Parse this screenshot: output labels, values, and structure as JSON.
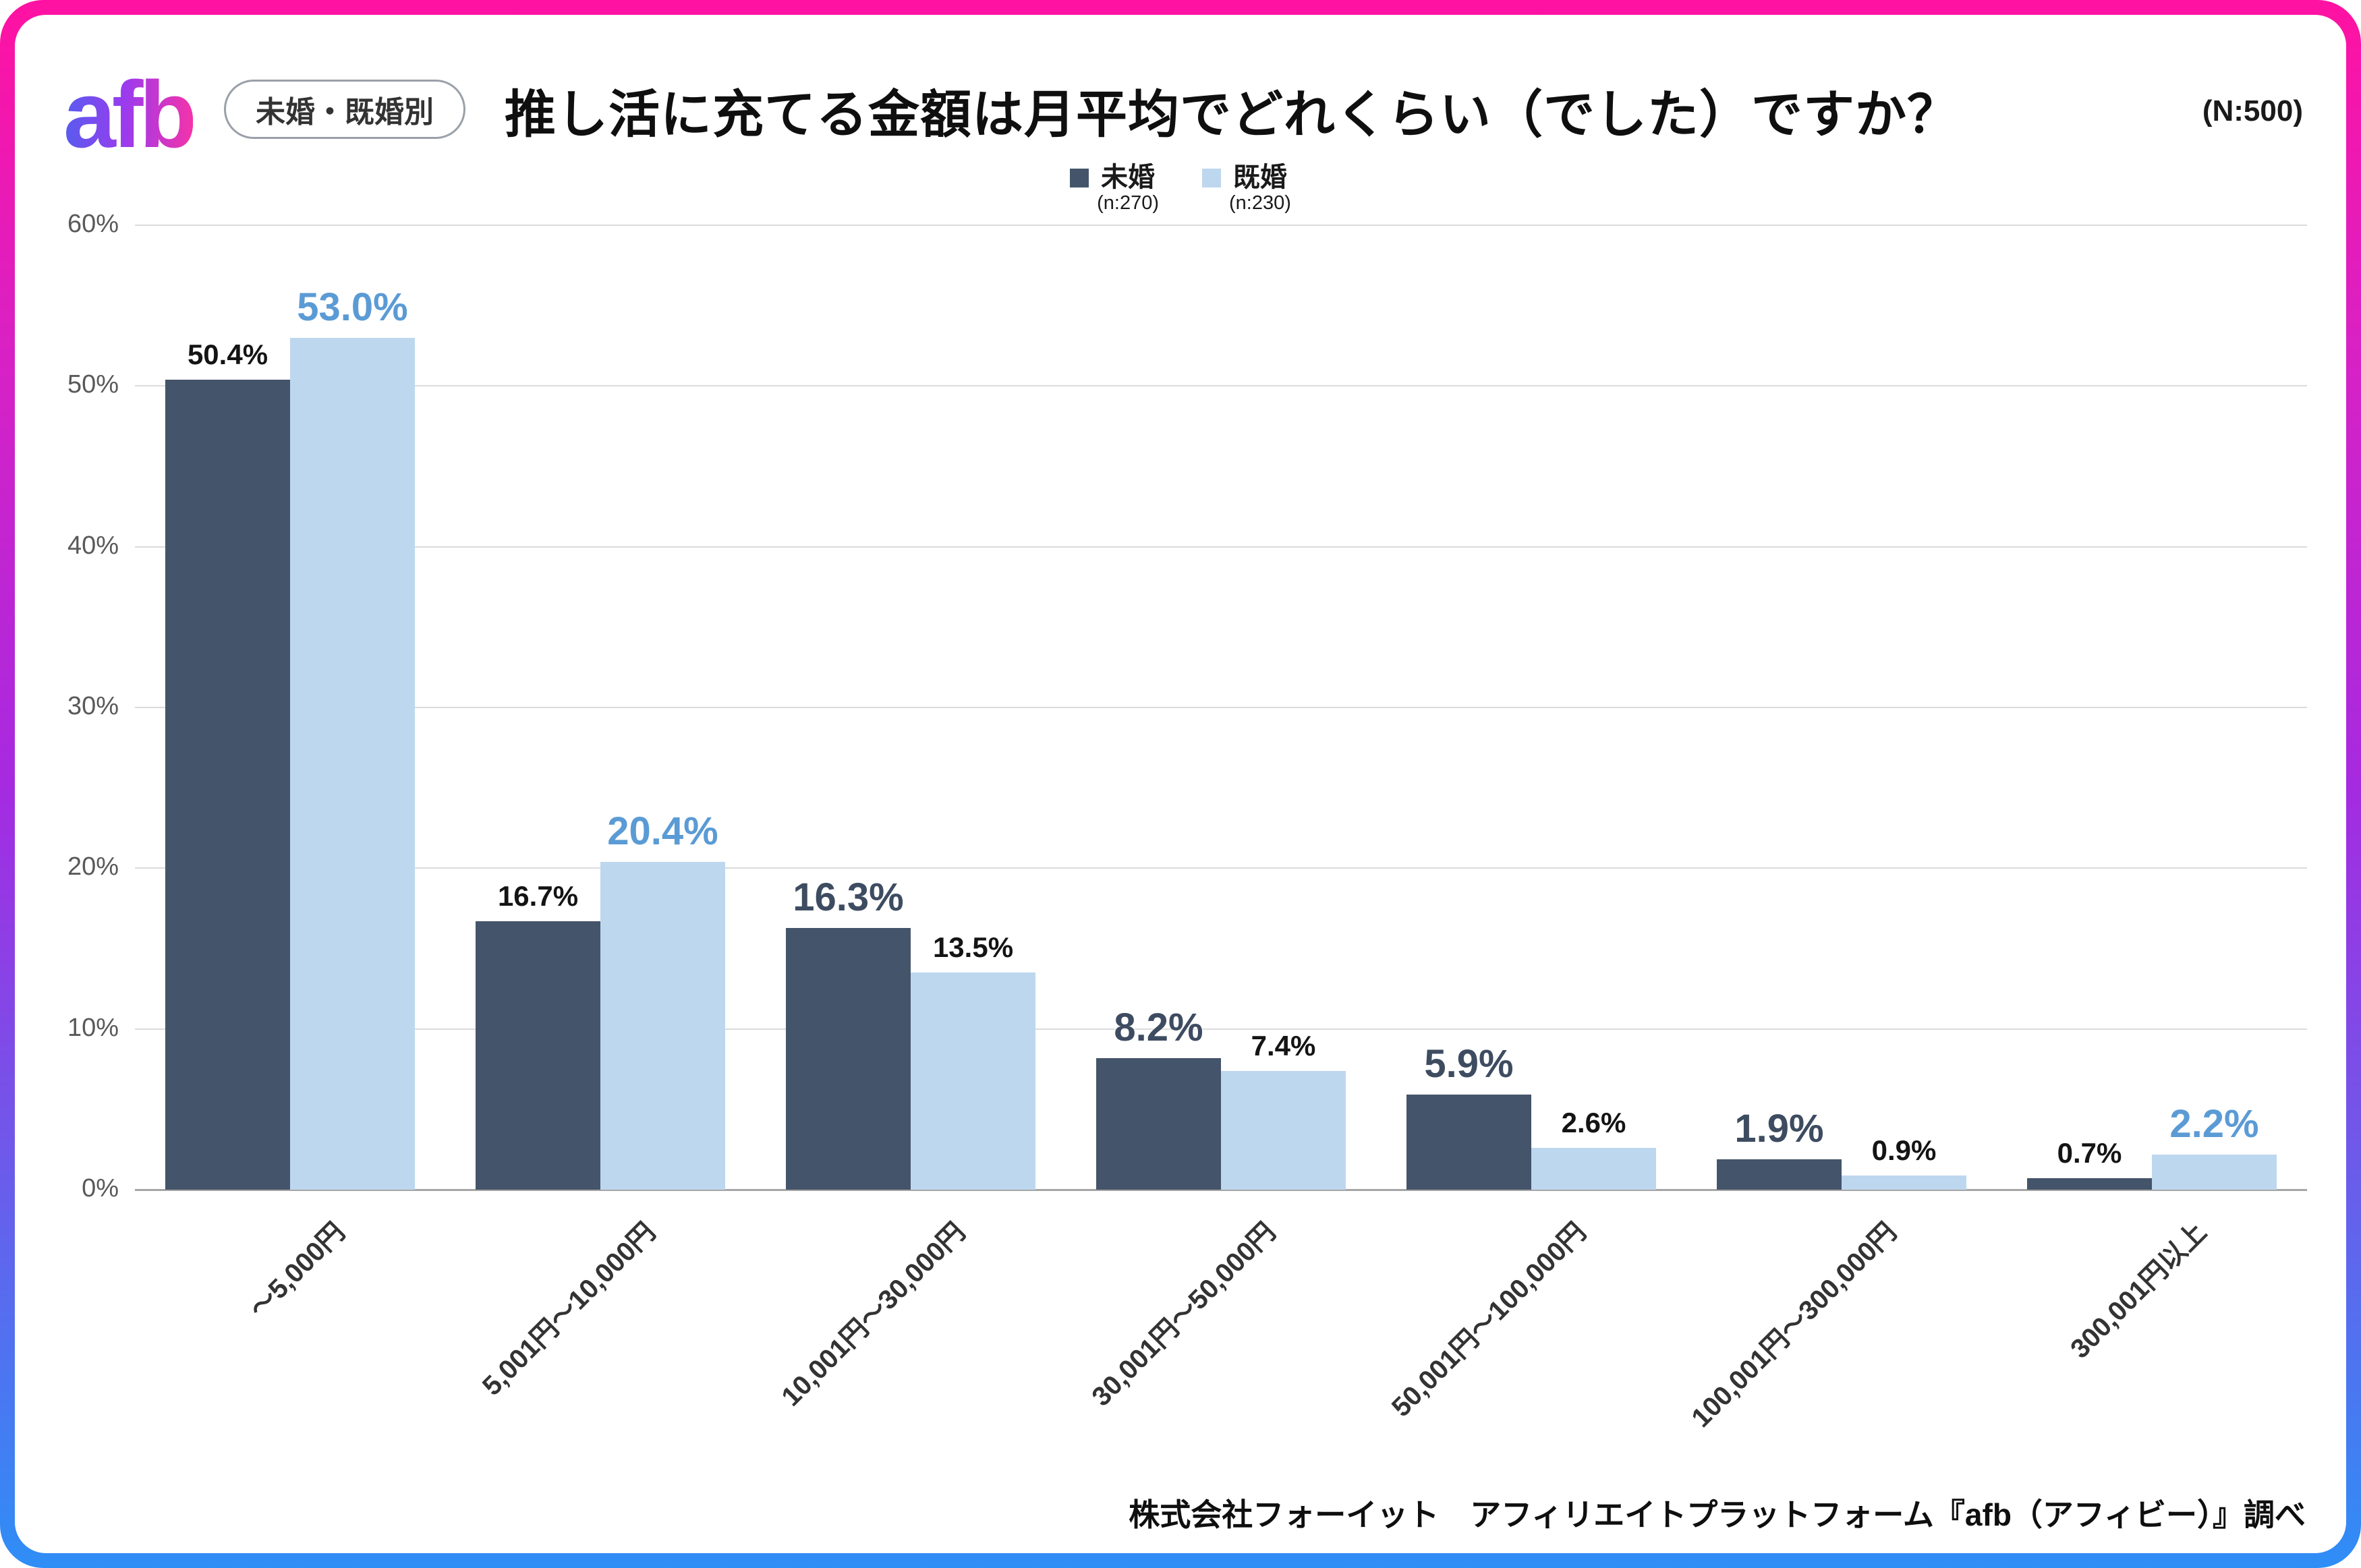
{
  "frame": {
    "border_gradient": [
      "#FF12A2",
      "#A62AE0",
      "#2F8EF6"
    ]
  },
  "header": {
    "logo": "afb",
    "badge": "未婚・既婚別",
    "title": "推し活に充てる金額は月平均でどれくらい（でした）ですか？",
    "sample_size": "(N:500)"
  },
  "chart_data": {
    "type": "bar",
    "title": "推し活に充てる金額は月平均でどれくらい（でした）ですか？",
    "categories": [
      "～5,000円",
      "5,001円～10,000円",
      "10,001円～30,000円",
      "30,001円～50,000円",
      "50,001円～100,000円",
      "100,001円～300,000円",
      "300,001円以上"
    ],
    "series": [
      {
        "name": "未婚",
        "n_label": "(n:270)",
        "color": "#44546A",
        "emphasis_color": "#3E4C61",
        "values": [
          50.4,
          16.7,
          16.3,
          8.2,
          5.9,
          1.9,
          0.7
        ],
        "labels": [
          "50.4%",
          "16.7%",
          "16.3%",
          "8.2%",
          "5.9%",
          "1.9%",
          "0.7%"
        ],
        "emphasized": [
          false,
          false,
          true,
          true,
          true,
          true,
          false
        ]
      },
      {
        "name": "既婚",
        "n_label": "(n:230)",
        "color": "#BDD7EE",
        "emphasis_color": "#5B9BD5",
        "values": [
          53.0,
          20.4,
          13.5,
          7.4,
          2.6,
          0.9,
          2.2
        ],
        "labels": [
          "53.0%",
          "20.4%",
          "13.5%",
          "7.4%",
          "2.6%",
          "0.9%",
          "2.2%"
        ],
        "emphasized": [
          true,
          true,
          false,
          false,
          false,
          false,
          true
        ]
      }
    ],
    "ylim": [
      0,
      60
    ],
    "ytick_step": 10,
    "ytick_labels": [
      "0%",
      "10%",
      "20%",
      "30%",
      "40%",
      "50%",
      "60%"
    ],
    "grid": true,
    "legend_position": "top-center",
    "xlabel": "",
    "ylabel": ""
  },
  "footer": {
    "credit": "株式会社フォーイット　アフィリエイトプラットフォーム『afb（アフィビー）』調べ"
  }
}
